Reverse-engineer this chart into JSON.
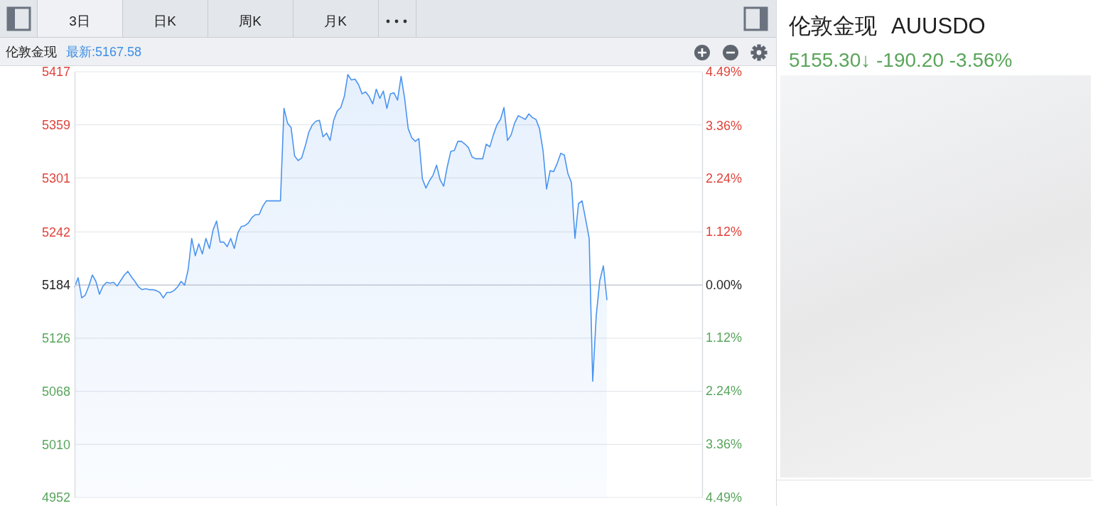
{
  "chart_data": {
    "type": "area",
    "title": "伦敦金现",
    "subtitle": "最新:5167.58",
    "annotations": [
      "3日",
      "日K",
      "周K",
      "月K",
      "伦敦金现",
      "AUUSDO",
      "5155.30↓ -190.20 -3.56%"
    ],
    "categories": [
      null,
      null,
      null,
      null,
      null,
      null,
      null,
      null,
      null,
      null,
      null,
      null,
      null,
      null,
      null,
      null,
      null,
      null,
      null,
      null,
      null,
      null,
      null,
      null,
      null,
      null,
      null,
      null,
      null,
      null,
      null,
      null,
      null,
      null,
      null,
      null,
      null,
      null,
      null,
      null,
      null,
      null,
      null,
      null,
      null,
      null,
      null,
      null,
      null,
      null,
      null,
      null,
      null,
      null,
      null,
      null,
      null,
      null,
      null,
      null,
      null,
      null,
      null,
      null,
      null,
      null,
      null,
      null,
      null,
      null,
      null,
      null,
      null,
      null,
      null,
      null,
      null,
      null,
      null,
      null,
      null,
      null,
      null,
      null,
      null,
      null,
      null,
      null,
      null,
      null,
      null,
      null,
      null,
      null,
      null,
      null,
      null,
      null,
      null,
      null,
      null,
      null,
      null,
      null,
      null,
      null,
      null,
      null,
      null,
      null,
      null,
      null,
      null,
      null,
      null,
      null,
      null,
      null,
      null,
      null,
      null,
      null,
      null,
      null,
      null,
      null,
      null,
      null,
      null,
      null,
      null,
      null,
      null,
      null,
      null,
      null,
      null,
      null,
      null,
      null,
      null,
      null,
      null,
      null,
      null,
      null,
      null,
      null,
      null,
      null,
      null
    ],
    "series": [
      {
        "color": "#4a94f0",
        "values": [
          5182,
          5192,
          5170,
          5173,
          5183,
          5195,
          5188,
          5174,
          5183,
          5187,
          5186,
          5187,
          5183,
          5189,
          5195,
          5199,
          5193,
          5188,
          5182,
          5179,
          5180,
          5179,
          5179,
          5178,
          5176,
          5170,
          5176,
          5176,
          5178,
          5182,
          5188,
          5184,
          5201,
          5235,
          5216,
          5229,
          5218,
          5235,
          5224,
          5244,
          5254,
          5231,
          5231,
          5226,
          5235,
          5224,
          5241,
          5248,
          5249,
          5252,
          5258,
          5261,
          5261,
          5270,
          5276,
          5276,
          5276,
          5276,
          5276,
          5377,
          5361,
          5356,
          5325,
          5320,
          5323,
          5336,
          5351,
          5359,
          5363,
          5364,
          5346,
          5350,
          5342,
          5364,
          5374,
          5378,
          5390,
          5414,
          5408,
          5409,
          5403,
          5393,
          5395,
          5390,
          5382,
          5398,
          5388,
          5396,
          5377,
          5393,
          5394,
          5386,
          5412,
          5388,
          5355,
          5345,
          5341,
          5344,
          5300,
          5290,
          5298,
          5304,
          5315,
          5299,
          5292,
          5313,
          5330,
          5331,
          5341,
          5341,
          5338,
          5334,
          5324,
          5322,
          5322,
          5322,
          5338,
          5335,
          5348,
          5359,
          5365,
          5378,
          5342,
          5348,
          5361,
          5369,
          5367,
          5365,
          5371,
          5367,
          5365,
          5355,
          5331,
          5289,
          5309,
          5308,
          5317,
          5328,
          5326,
          5306,
          5296,
          5235,
          5273,
          5276,
          5256,
          5235,
          5079,
          5151,
          5189,
          5205,
          5168
        ]
      }
    ],
    "ylim": [
      4952,
      5417
    ],
    "yticks": [
      4952,
      5010,
      5068,
      5126,
      5184,
      5242,
      5301,
      5359,
      5417
    ],
    "y2lim": [
      -4.49,
      4.49
    ],
    "y2ticks": [
      {
        "value": -4.49,
        "label": "4.49%"
      },
      {
        "value": -3.36,
        "label": "3.36%"
      },
      {
        "value": -2.24,
        "label": "2.24%"
      },
      {
        "value": -1.12,
        "label": "1.12%"
      },
      {
        "value": 0,
        "label": "0.00%"
      },
      {
        "value": 1.12,
        "label": "1.12%"
      },
      {
        "value": 2.24,
        "label": "2.24%"
      },
      {
        "value": 3.36,
        "label": "3.36%"
      },
      {
        "value": 4.49,
        "label": "4.49%"
      }
    ],
    "ref_lines": [
      {
        "axis": "y",
        "value": 5184,
        "color": "#cfd3d8"
      }
    ],
    "grid": "y"
  }
}
